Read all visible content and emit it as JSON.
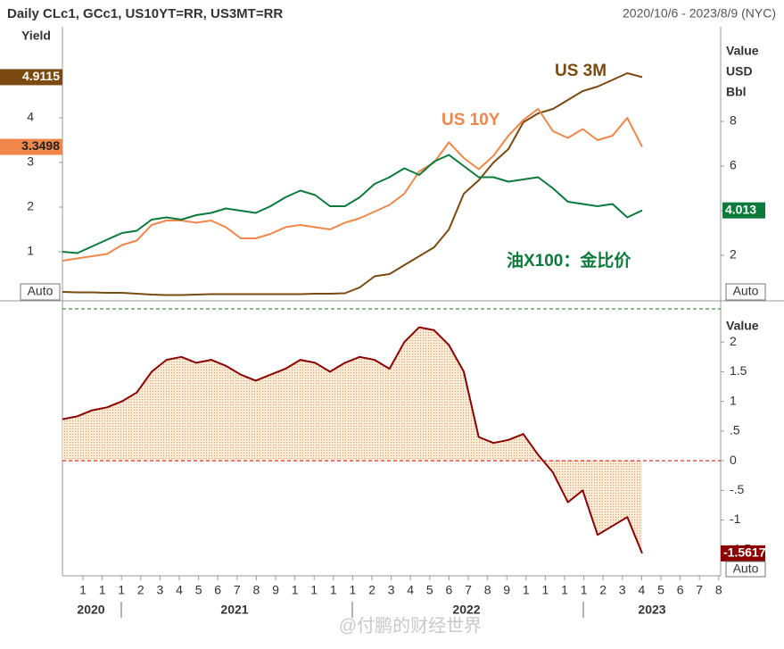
{
  "chart_data": [
    {
      "type": "line",
      "title": "Daily CLc1, GCc1, US10YT=RR, US3MT=RR",
      "subtitle": "2020/10/6 - 2023/8/9 (NYC)",
      "ylabel": "Yield",
      "y2label": [
        "Value",
        "USD",
        "Bbl"
      ],
      "scale_mode": "Auto",
      "ylim": [
        -0.1,
        6.04
      ],
      "yticks": [
        1,
        2,
        3,
        4
      ],
      "y2lim": [
        -0.04,
        12.24
      ],
      "y2ticks": [
        2,
        4,
        6,
        8
      ],
      "series": [
        {
          "name": "US 3M",
          "color": "#7a4a10",
          "values": [
            0.1,
            0.09,
            0.09,
            0.08,
            0.08,
            0.06,
            0.04,
            0.03,
            0.03,
            0.04,
            0.05,
            0.05,
            0.05,
            0.05,
            0.05,
            0.05,
            0.05,
            0.06,
            0.06,
            0.07,
            0.2,
            0.45,
            0.5,
            0.7,
            0.9,
            1.1,
            1.5,
            2.3,
            2.6,
            3.0,
            3.3,
            3.9,
            4.1,
            4.2,
            4.4,
            4.6,
            4.7,
            4.85,
            5.0,
            4.9115
          ]
        },
        {
          "name": "US 10Y",
          "color": "#f0874a",
          "values": [
            0.8,
            0.85,
            0.9,
            0.95,
            1.15,
            1.25,
            1.6,
            1.7,
            1.7,
            1.65,
            1.7,
            1.55,
            1.3,
            1.3,
            1.4,
            1.55,
            1.6,
            1.55,
            1.5,
            1.65,
            1.75,
            1.9,
            2.05,
            2.3,
            2.8,
            3.0,
            3.45,
            3.1,
            2.85,
            3.15,
            3.6,
            3.95,
            4.2,
            3.7,
            3.55,
            3.75,
            3.5,
            3.6,
            4.0,
            3.3498
          ]
        },
        {
          "name": "油X100：金比价",
          "color": "#0b7a3b",
          "axis": "y2",
          "values": [
            2.16,
            2.1,
            2.4,
            2.7,
            3.0,
            3.1,
            3.6,
            3.7,
            3.6,
            3.8,
            3.9,
            4.1,
            4.0,
            3.9,
            4.2,
            4.6,
            4.9,
            4.7,
            4.2,
            4.2,
            4.6,
            5.2,
            5.5,
            5.9,
            5.6,
            6.2,
            6.5,
            6.0,
            5.5,
            5.5,
            5.3,
            5.4,
            5.5,
            5.0,
            4.4,
            4.3,
            4.2,
            4.3,
            3.7,
            4.013
          ]
        }
      ]
    },
    {
      "type": "area",
      "ylabel": "Value",
      "scale_mode": "Auto",
      "ylim": [
        -1.94,
        2.65
      ],
      "yticks": [
        2,
        {
          "value": 1.5,
          "label": "1.5"
        },
        1,
        {
          "value": 0.5,
          "label": ".5"
        },
        0,
        {
          "value": -0.5,
          "label": "-.5"
        },
        -1,
        {
          "value": -1.5,
          "label": "-1.5"
        }
      ],
      "baseline": 0,
      "series": [
        {
          "color": "#8b0000",
          "fill": "#f5d2ac",
          "values": [
            0.7,
            0.75,
            0.85,
            0.9,
            1.0,
            1.15,
            1.5,
            1.7,
            1.75,
            1.65,
            1.7,
            1.6,
            1.45,
            1.35,
            1.45,
            1.55,
            1.7,
            1.65,
            1.5,
            1.65,
            1.75,
            1.7,
            1.55,
            2.0,
            2.25,
            2.2,
            1.95,
            1.5,
            0.4,
            0.3,
            0.35,
            0.45,
            0.1,
            -0.2,
            -0.7,
            -0.5,
            -1.25,
            -1.1,
            -0.95,
            -1.5617
          ]
        }
      ],
      "x_tick_labels": [
        "1",
        "1",
        "1",
        "2",
        "3",
        "4",
        "5",
        "6",
        "7",
        "8",
        "9",
        "1",
        "1",
        "1",
        "1",
        "2",
        "3",
        "4",
        "5",
        "6",
        "7",
        "8",
        "9",
        "1",
        "1",
        "1",
        "1",
        "2",
        "3",
        "4",
        "5",
        "6",
        "7",
        "8"
      ],
      "x_year_labels": [
        "2020",
        "2021",
        "2022",
        "2023"
      ]
    }
  ],
  "watermark": "@付鹏的财经世界"
}
